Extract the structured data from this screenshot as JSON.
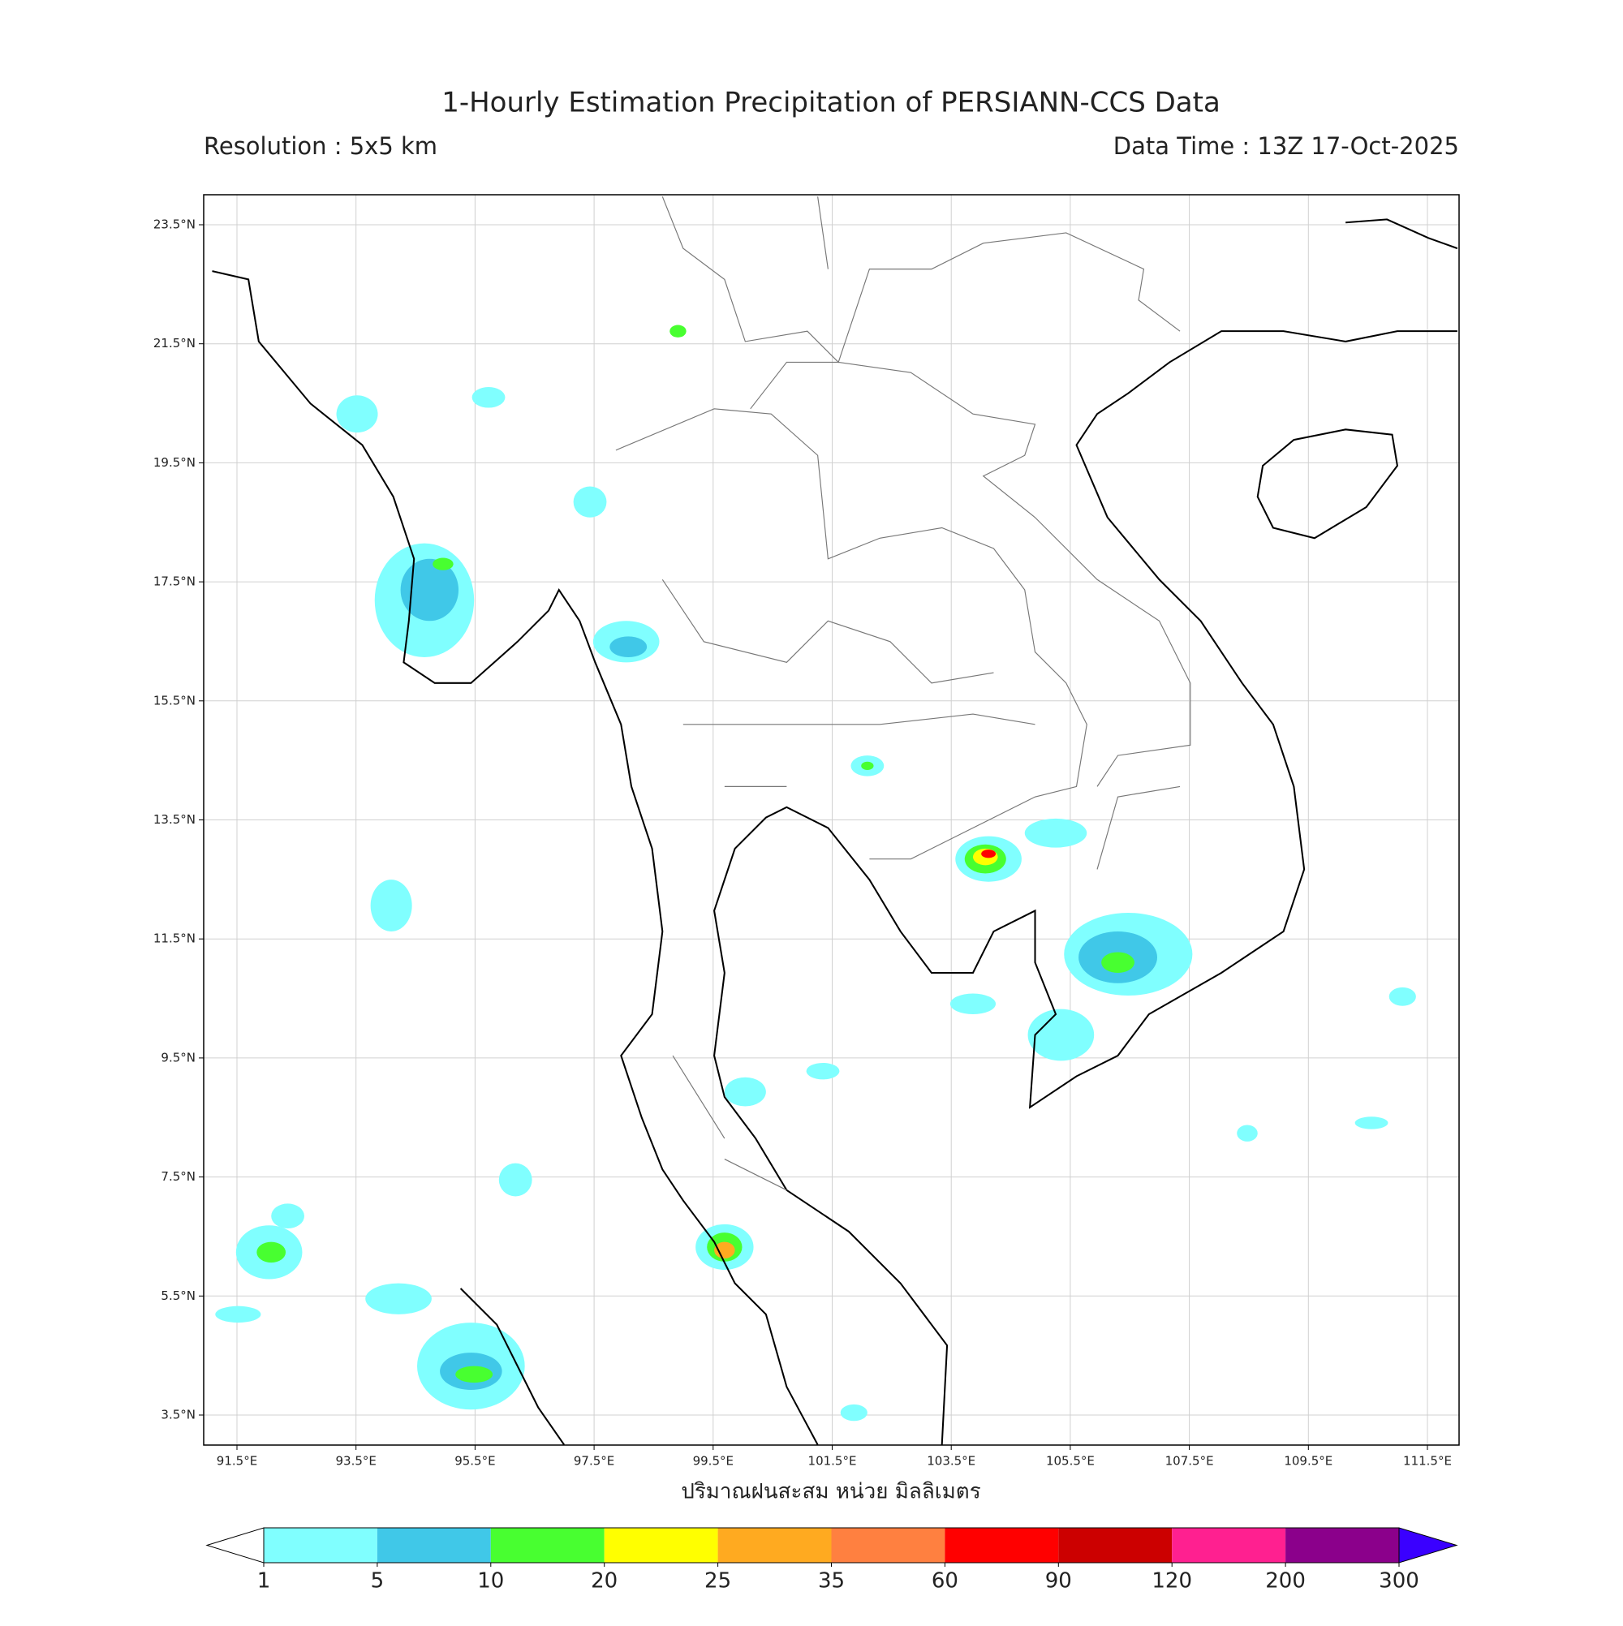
{
  "header": {
    "title": "1-Hourly Estimation Precipitation of PERSIANN-CCS Data",
    "resolution": "Resolution : 5x5 km",
    "data_time": "Data Time : 13Z 17-Oct-2025"
  },
  "map": {
    "lon_ticks": [
      {
        "value": 91.5,
        "label": "91.5°E"
      },
      {
        "value": 93.5,
        "label": "93.5°E"
      },
      {
        "value": 95.5,
        "label": "95.5°E"
      },
      {
        "value": 97.5,
        "label": "97.5°E"
      },
      {
        "value": 99.5,
        "label": "99.5°E"
      },
      {
        "value": 101.5,
        "label": "101.5°E"
      },
      {
        "value": 103.5,
        "label": "103.5°E"
      },
      {
        "value": 105.5,
        "label": "105.5°E"
      },
      {
        "value": 107.5,
        "label": "107.5°E"
      },
      {
        "value": 109.5,
        "label": "109.5°E"
      },
      {
        "value": 111.5,
        "label": "111.5°E"
      }
    ],
    "lat_ticks": [
      {
        "value": 23.5,
        "label": "23.5°N"
      },
      {
        "value": 21.5,
        "label": "21.5°N"
      },
      {
        "value": 19.5,
        "label": "19.5°N"
      },
      {
        "value": 17.5,
        "label": "17.5°N"
      },
      {
        "value": 15.5,
        "label": "15.5°N"
      },
      {
        "value": 13.5,
        "label": "13.5°N"
      },
      {
        "value": 11.5,
        "label": "11.5°N"
      },
      {
        "value": 9.5,
        "label": "9.5°N"
      },
      {
        "value": 7.5,
        "label": "7.5°N"
      },
      {
        "value": 5.5,
        "label": "5.5°N"
      },
      {
        "value": 3.5,
        "label": "3.5°N"
      }
    ]
  },
  "colorbar": {
    "label": "ปริมาณฝนสะสม หน่วย มิลลิเมตร",
    "levels": [
      1,
      5,
      10,
      20,
      25,
      35,
      60,
      90,
      120,
      200,
      300
    ],
    "colors": [
      "#80ffff",
      "#40c8e8",
      "#48ff30",
      "#ffff00",
      "#ffaa20",
      "#ff8040",
      "#ff0000",
      "#cc0000",
      "#ff2090",
      "#8b008b"
    ],
    "over_color": "#3a00ff"
  }
}
